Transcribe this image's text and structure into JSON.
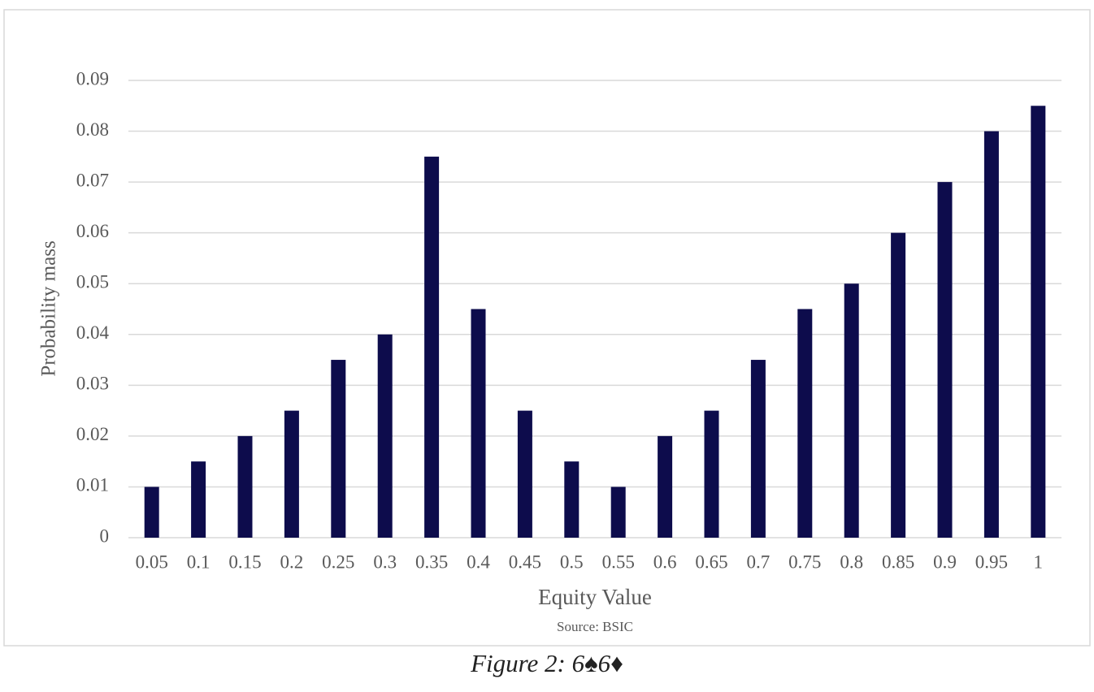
{
  "chart_data": {
    "type": "bar",
    "ylabel": "Probability mass",
    "xlabel": "Equity Value",
    "source": "Source: BSIC",
    "caption": "Figure 2: 6♠6♦",
    "categories": [
      "0.05",
      "0.1",
      "0.15",
      "0.2",
      "0.25",
      "0.3",
      "0.35",
      "0.4",
      "0.45",
      "0.5",
      "0.55",
      "0.6",
      "0.65",
      "0.7",
      "0.75",
      "0.8",
      "0.85",
      "0.9",
      "0.95",
      "1"
    ],
    "values": [
      0.01,
      0.015,
      0.02,
      0.025,
      0.035,
      0.04,
      0.075,
      0.045,
      0.025,
      0.015,
      0.01,
      0.02,
      0.025,
      0.035,
      0.045,
      0.05,
      0.06,
      0.07,
      0.08,
      0.085
    ],
    "color": "#0d0c4c",
    "ylim": [
      0,
      0.09
    ],
    "yticks": [
      0,
      0.01,
      0.02,
      0.03,
      0.04,
      0.05,
      0.06,
      0.07,
      0.08,
      0.09
    ],
    "grid": true
  }
}
